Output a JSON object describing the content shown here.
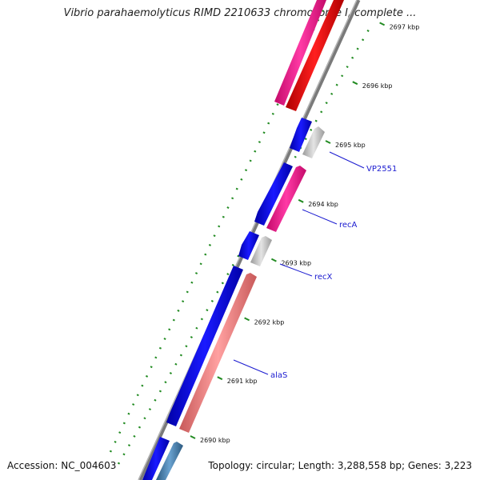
{
  "title": "Vibrio parahaemolyticus RIMD 2210633 chromosome I, complete ...",
  "footer": {
    "accession": "Accession: NC_004603",
    "stats": "Topology: circular; Length: 3,288,558 bp; Genes: 3,223"
  },
  "ticks": [
    {
      "label": "2697 kbp",
      "kbp": 2697
    },
    {
      "label": "2696 kbp",
      "kbp": 2696
    },
    {
      "label": "2695 kbp",
      "kbp": 2695
    },
    {
      "label": "2694 kbp",
      "kbp": 2694
    },
    {
      "label": "2693 kbp",
      "kbp": 2693
    },
    {
      "label": "2692 kbp",
      "kbp": 2692
    },
    {
      "label": "2691 kbp",
      "kbp": 2691
    },
    {
      "label": "2690 kbp",
      "kbp": 2690
    }
  ],
  "gene_labels": [
    {
      "name": "VP2551"
    },
    {
      "name": "recA"
    },
    {
      "name": "recX"
    },
    {
      "name": "alaS"
    }
  ],
  "colors": {
    "backbone": "#808080",
    "cds_forward": "#0000ff",
    "magenta": "#ff1493",
    "red": "#ff0000",
    "grey": "#c8c8c8",
    "salmon": "#f08080",
    "steelblue": "#4682b4",
    "tick": "#228b22",
    "label_line": "#1a1ad0"
  }
}
